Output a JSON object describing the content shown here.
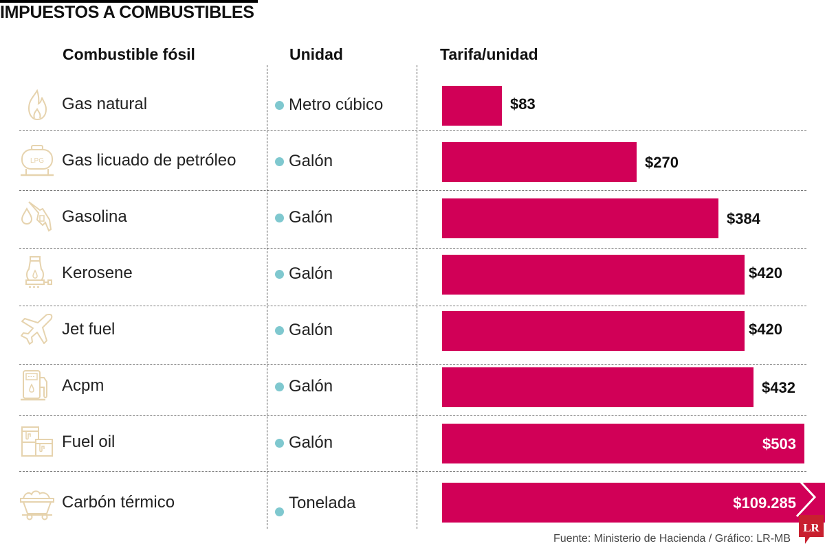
{
  "title": "IMPUESTOS A COMBUSTIBLES",
  "headers": {
    "fuel": "Combustible fósil",
    "unit": "Unidad",
    "rate": "Tarifa/unidad"
  },
  "colors": {
    "bar": "#d10057",
    "dot": "#7fc8cf",
    "icon": "#e6d3ae",
    "logo": "#c8202f"
  },
  "rows": [
    {
      "fuel": "Gas natural",
      "icon": "flame-icon",
      "unit": "Metro cúbico",
      "value_label": "$83"
    },
    {
      "fuel": "Gas licuado de petróleo",
      "icon": "lpg-tank-icon",
      "unit": "Galón",
      "value_label": "$270"
    },
    {
      "fuel": "Gasolina",
      "icon": "fuel-nozzle-icon",
      "unit": "Galón",
      "value_label": "$384"
    },
    {
      "fuel": "Kerosene",
      "icon": "oil-lamp-icon",
      "unit": "Galón",
      "value_label": "$420"
    },
    {
      "fuel": "Jet fuel",
      "icon": "airplane-icon",
      "unit": "Galón",
      "value_label": "$420"
    },
    {
      "fuel": "Acpm",
      "icon": "fuel-pump-icon",
      "unit": "Galón",
      "value_label": "$432"
    },
    {
      "fuel": "Fuel oil",
      "icon": "oil-barrels-icon",
      "unit": "Galón",
      "value_label": "$503"
    },
    {
      "fuel": "Carbón térmico",
      "icon": "coal-cart-icon",
      "unit": "Tonelada",
      "value_label": "$109.285"
    }
  ],
  "chart_data": {
    "type": "bar",
    "orientation": "horizontal",
    "title": "IMPUESTOS A COMBUSTIBLES",
    "xlabel": "Tarifa/unidad",
    "ylabel": "Combustible fósil",
    "categories": [
      "Gas natural",
      "Gas licuado de petróleo",
      "Gasolina",
      "Kerosene",
      "Jet fuel",
      "Acpm",
      "Fuel oil",
      "Carbón térmico"
    ],
    "units": [
      "Metro cúbico",
      "Galón",
      "Galón",
      "Galón",
      "Galón",
      "Galón",
      "Galón",
      "Tonelada"
    ],
    "values": [
      83,
      270,
      384,
      420,
      420,
      432,
      503,
      109285
    ],
    "data_labels": [
      "$83",
      "$270",
      "$384",
      "$420",
      "$420",
      "$432",
      "$503",
      "$109.285"
    ],
    "axis_break_on_last_bar": true,
    "scale_max": 510,
    "grid": false,
    "legend": "none"
  },
  "footer": {
    "source": "Fuente: Ministerio de Hacienda / Gráfico: LR-MB",
    "logo_text": "LR"
  }
}
